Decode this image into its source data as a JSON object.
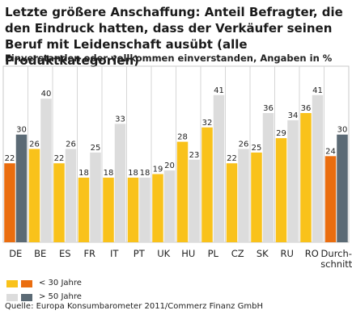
{
  "title": "Letzte größere Anschaffung: Anteil Befragter, die den Eindruck hatten, dass der Verkäufer seinen Beruf mit Leidenschaft ausübt (alle Produktkategorien)",
  "subtitle": "Einverstanden oder vollkommen einverstanden, Angaben in %",
  "source": "Quelle: Europa Konsumbarometer 2011/Commerz Finanz GmbH",
  "colors": {
    "yellow": "#f9c21b",
    "orange": "#ea6d0f",
    "lightgray": "#dcdcdc",
    "darkgray": "#5b6a75"
  },
  "legend": [
    {
      "label": "< 30 Jahre",
      "colors": [
        "yellow",
        "orange"
      ]
    },
    {
      "label": "> 50 Jahre",
      "colors": [
        "lightgray",
        "darkgray"
      ]
    }
  ],
  "chart_data": {
    "type": "bar",
    "title": "Letzte größere Anschaffung: Anteil Befragter, die den Eindruck hatten, dass der Verkäufer seinen Beruf mit Leidenschaft ausübt (alle Produktkategorien)",
    "subtitle": "Einverstanden oder vollkommen einverstanden, Angaben in %",
    "categories": [
      "DE",
      "BE",
      "ES",
      "FR",
      "IT",
      "PT",
      "UK",
      "HU",
      "PL",
      "CZ",
      "SK",
      "RU",
      "RO",
      "Durch-\nschnitt"
    ],
    "series": [
      {
        "name": "< 30 Jahre",
        "values": [
          22,
          26,
          22,
          18,
          18,
          18,
          19,
          28,
          32,
          22,
          25,
          29,
          36,
          24
        ]
      },
      {
        "name": "> 50 Jahre",
        "values": [
          30,
          40,
          26,
          25,
          33,
          18,
          20,
          23,
          41,
          26,
          36,
          34,
          41,
          30
        ]
      }
    ],
    "highlight": {
      "DE": [
        "orange",
        "darkgray"
      ],
      "Durch-\nschnitt": [
        "orange",
        "darkgray"
      ]
    },
    "ylim": [
      0,
      45
    ],
    "grid": true,
    "legend_position": "bottom-left"
  }
}
